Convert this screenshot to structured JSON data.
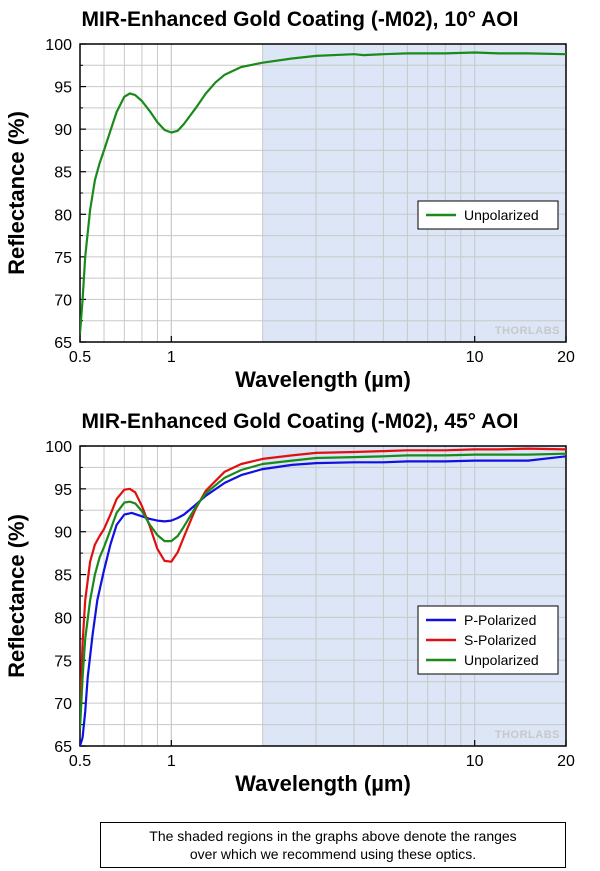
{
  "chart_data": [
    {
      "type": "line",
      "title": "MIR-Enhanced Gold Coating (-M02), 10° AOI",
      "xlabel": "Wavelength (µm)",
      "ylabel": "Reflectance (%)",
      "xscale": "log",
      "xlim": [
        0.5,
        20
      ],
      "ylim": [
        65,
        100
      ],
      "x_ticks": [
        0.5,
        1,
        10,
        20
      ],
      "y_ticks": [
        65,
        70,
        75,
        80,
        85,
        90,
        95,
        100
      ],
      "grid": true,
      "shaded_range": [
        2,
        20
      ],
      "shaded_color": "#dce6f6",
      "legend_position": "center-right",
      "watermark": "THORLABS",
      "series": [
        {
          "name": "Unpolarized",
          "color": "#1a8a1a",
          "x": [
            0.5,
            0.51,
            0.52,
            0.54,
            0.56,
            0.58,
            0.6,
            0.63,
            0.66,
            0.7,
            0.73,
            0.76,
            0.8,
            0.85,
            0.9,
            0.95,
            1.0,
            1.05,
            1.1,
            1.2,
            1.3,
            1.4,
            1.5,
            1.7,
            2.0,
            2.5,
            3,
            4,
            4.3,
            5,
            6,
            8,
            10,
            12,
            15,
            20
          ],
          "y": [
            66,
            70,
            75,
            80.5,
            84,
            86,
            87.5,
            89.8,
            92,
            93.8,
            94.2,
            94.0,
            93.3,
            92.1,
            90.8,
            89.9,
            89.6,
            89.8,
            90.6,
            92.4,
            94.2,
            95.5,
            96.4,
            97.3,
            97.8,
            98.3,
            98.6,
            98.8,
            98.7,
            98.8,
            98.9,
            98.9,
            99.0,
            98.9,
            98.9,
            98.8
          ]
        }
      ]
    },
    {
      "type": "line",
      "title": "MIR-Enhanced Gold Coating (-M02), 45° AOI",
      "xlabel": "Wavelength (µm)",
      "ylabel": "Reflectance (%)",
      "xscale": "log",
      "xlim": [
        0.5,
        20
      ],
      "ylim": [
        65,
        100
      ],
      "x_ticks": [
        0.5,
        1,
        10,
        20
      ],
      "y_ticks": [
        65,
        70,
        75,
        80,
        85,
        90,
        95,
        100
      ],
      "grid": true,
      "shaded_range": [
        2,
        20
      ],
      "shaded_color": "#dce6f6",
      "legend_position": "center-right",
      "watermark": "THORLABS",
      "series": [
        {
          "name": "P-Polarized",
          "color": "#1010e0",
          "x": [
            0.5,
            0.51,
            0.52,
            0.53,
            0.55,
            0.57,
            0.6,
            0.63,
            0.66,
            0.7,
            0.74,
            0.8,
            0.85,
            0.9,
            0.95,
            1.0,
            1.05,
            1.1,
            1.2,
            1.3,
            1.5,
            1.7,
            2.0,
            2.5,
            3,
            4,
            5,
            6,
            8,
            10,
            12,
            15,
            20
          ],
          "y": [
            65,
            66,
            69,
            73,
            78,
            82,
            85.5,
            88.5,
            90.8,
            92.0,
            92.2,
            91.8,
            91.5,
            91.3,
            91.2,
            91.3,
            91.6,
            92.0,
            93.1,
            94.2,
            95.7,
            96.6,
            97.3,
            97.8,
            98.0,
            98.1,
            98.1,
            98.2,
            98.2,
            98.3,
            98.3,
            98.3,
            98.8
          ]
        },
        {
          "name": "S-Polarized",
          "color": "#e01010",
          "x": [
            0.5,
            0.505,
            0.51,
            0.52,
            0.54,
            0.56,
            0.58,
            0.6,
            0.63,
            0.66,
            0.7,
            0.73,
            0.76,
            0.8,
            0.85,
            0.9,
            0.95,
            1.0,
            1.05,
            1.1,
            1.2,
            1.3,
            1.5,
            1.7,
            2.0,
            2.5,
            3,
            4,
            5,
            6,
            8,
            10,
            12,
            15,
            20
          ],
          "y": [
            70,
            73,
            77,
            82,
            86.5,
            88.5,
            89.5,
            90.3,
            92.0,
            93.8,
            94.9,
            95.0,
            94.6,
            93.0,
            90.6,
            88.0,
            86.6,
            86.5,
            87.6,
            89.4,
            92.6,
            94.8,
            97.0,
            97.9,
            98.5,
            98.9,
            99.2,
            99.3,
            99.4,
            99.5,
            99.5,
            99.6,
            99.6,
            99.7,
            99.6
          ]
        },
        {
          "name": "Unpolarized",
          "color": "#1a8a1a",
          "x": [
            0.5,
            0.505,
            0.51,
            0.52,
            0.54,
            0.56,
            0.58,
            0.6,
            0.63,
            0.66,
            0.7,
            0.73,
            0.76,
            0.8,
            0.85,
            0.9,
            0.95,
            1.0,
            1.05,
            1.1,
            1.2,
            1.3,
            1.5,
            1.7,
            2.0,
            2.5,
            3,
            4,
            5,
            6,
            8,
            10,
            12,
            15,
            20
          ],
          "y": [
            67,
            70,
            73,
            77.5,
            82,
            85,
            87,
            88.2,
            90.2,
            92.2,
            93.4,
            93.5,
            93.3,
            92.4,
            90.8,
            89.6,
            88.9,
            88.9,
            89.5,
            90.6,
            92.8,
            94.5,
            96.3,
            97.2,
            97.9,
            98.3,
            98.6,
            98.7,
            98.8,
            98.9,
            98.9,
            99.0,
            99.0,
            99.0,
            99.1
          ]
        }
      ]
    }
  ],
  "note": {
    "line1": "The shaded regions in the graphs above denote the ranges",
    "line2": "over which we recommend using these optics."
  }
}
